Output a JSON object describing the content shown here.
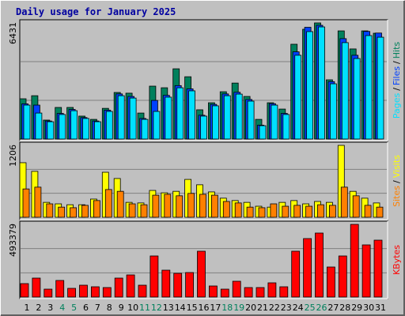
{
  "chart_data": {
    "type": "bar",
    "title": "Daily usage for January 2025",
    "categories": [
      "1",
      "2",
      "3",
      "4",
      "5",
      "6",
      "7",
      "8",
      "9",
      "10",
      "11",
      "12",
      "13",
      "14",
      "15",
      "16",
      "17",
      "18",
      "19",
      "20",
      "21",
      "22",
      "23",
      "24",
      "25",
      "26",
      "27",
      "28",
      "29",
      "30",
      "31"
    ],
    "category_colors": [
      "#000000",
      "#000000",
      "#000000",
      "#00805c",
      "#00805c",
      "#000000",
      "#000000",
      "#000000",
      "#000000",
      "#000000",
      "#00805c",
      "#00805c",
      "#000000",
      "#000000",
      "#000000",
      "#000000",
      "#000000",
      "#00805c",
      "#00805c",
      "#000000",
      "#000000",
      "#000000",
      "#000000",
      "#000000",
      "#00805c",
      "#00805c",
      "#000000",
      "#000000",
      "#000000",
      "#000000",
      "#000000"
    ],
    "legend_separator": "/",
    "panels": [
      {
        "ylim": [
          0,
          6431
        ],
        "yticks": [
          6431
        ],
        "series": [
          {
            "name": "Hits",
            "color": "#00805c",
            "values": [
              2230,
              2400,
              1050,
              1750,
              1750,
              1270,
              1090,
              1700,
              2580,
              2540,
              1440,
              2930,
              2840,
              3890,
              3450,
              1620,
              2010,
              2620,
              3100,
              2360,
              1090,
              2010,
              1660,
              5250,
              6080,
              6431,
              3280,
              5990,
              4990,
              5990,
              5860
            ]
          },
          {
            "name": "Files",
            "color": "#0040ff",
            "values": [
              1950,
              1880,
              1000,
              1420,
              1640,
              1190,
              1000,
              1600,
              2500,
              2360,
              1140,
              2140,
              2420,
              2960,
              2780,
              1320,
              1920,
              2500,
              2590,
              2190,
              770,
              1960,
              1420,
              4830,
              6190,
              6300,
              3180,
              5560,
              4640,
              5960,
              5870
            ]
          },
          {
            "name": "Pages",
            "color": "#00e0ff",
            "values": [
              1880,
              1440,
              960,
              1360,
              1570,
              1140,
              960,
              1530,
              2400,
              2270,
              1090,
              1530,
              2320,
              2840,
              2670,
              1270,
              1840,
              2400,
              2490,
              2100,
              740,
              1880,
              1360,
              4640,
              5950,
              6210,
              3060,
              5340,
              4460,
              5730,
              5640
            ]
          }
        ]
      },
      {
        "ylim": [
          0,
          1206
        ],
        "yticks": [
          1206
        ],
        "series": [
          {
            "name": "Visits",
            "color": "#ffff00",
            "values": [
              915,
              770,
              250,
              225,
              210,
              210,
              305,
              755,
              650,
              250,
              240,
              450,
              410,
              435,
              635,
              545,
              425,
              320,
              280,
              250,
              185,
              170,
              250,
              280,
              225,
              265,
              250,
              1206,
              435,
              320,
              240
            ]
          },
          {
            "name": "Sites",
            "color": "#ff8000",
            "values": [
              475,
              505,
              225,
              170,
              160,
              200,
              280,
              465,
              435,
              225,
              210,
              370,
              385,
              360,
              400,
              385,
              370,
              265,
              240,
              170,
              160,
              225,
              185,
              200,
              185,
              210,
              200,
              505,
              360,
              200,
              170
            ]
          }
        ]
      },
      {
        "ylim": [
          0,
          493379
        ],
        "yticks": [
          493379
        ],
        "series": [
          {
            "name": "KBytes",
            "color": "#ff0000",
            "values": [
              91200,
              128700,
              53600,
              112600,
              59000,
              80400,
              69700,
              64400,
              128700,
              150200,
              80400,
              278900,
              182300,
              160900,
              166300,
              311100,
              75100,
              53600,
              107300,
              64400,
              64400,
              96500,
              69700,
              311100,
              396900,
              434400,
              203800,
              278900,
              493379,
              354000,
              386100
            ]
          }
        ]
      }
    ]
  }
}
